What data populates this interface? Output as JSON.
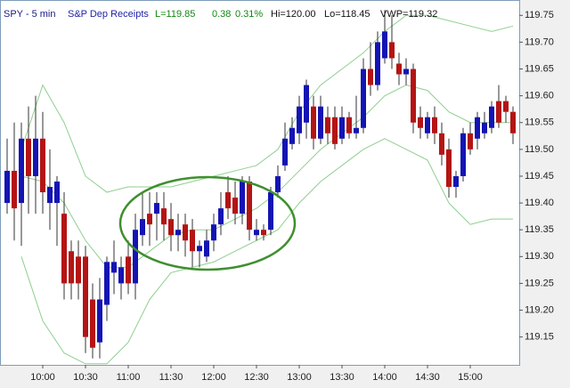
{
  "header": {
    "symbol": "SPY - 5 min",
    "name": "S&P Dep Receipts",
    "last": "L=119.85",
    "change": "0.38",
    "change_pct": "0.31%",
    "high": "Hi=120.00",
    "low": "Lo=118.45",
    "vwap": "VWP=119.32"
  },
  "chart_data": {
    "type": "candlestick",
    "categories": [
      null,
      null,
      null,
      null,
      null,
      "10:00",
      null,
      null,
      null,
      null,
      null,
      "10:30",
      null,
      null,
      null,
      null,
      null,
      "11:00",
      null,
      null,
      null,
      null,
      null,
      "11:30",
      null,
      null,
      null,
      null,
      null,
      "12:00",
      null,
      null,
      null,
      null,
      null,
      "12:30",
      null,
      null,
      null,
      null,
      null,
      "13:00",
      null,
      null,
      null,
      null,
      null,
      "13:30",
      null,
      null,
      null,
      null,
      null,
      "14:00",
      null,
      null,
      null,
      null,
      null,
      "14:30",
      null,
      null,
      null,
      null,
      null,
      "15:00",
      null,
      null,
      null,
      null,
      null,
      null
    ],
    "open": [
      119.4,
      119.46,
      119.4,
      119.52,
      119.45,
      119.52,
      119.4,
      119.4,
      119.38,
      119.31,
      119.3,
      119.3,
      119.22,
      119.14,
      119.21,
      119.27,
      119.25,
      119.3,
      119.25,
      119.34,
      119.38,
      119.38,
      119.39,
      119.37,
      119.34,
      119.36,
      119.35,
      119.31,
      119.3,
      119.33,
      119.36,
      119.42,
      119.41,
      119.38,
      119.44,
      119.34,
      119.35,
      119.35,
      119.42,
      119.47,
      119.51,
      119.53,
      119.55,
      119.58,
      119.52,
      119.56,
      119.56,
      119.52,
      119.56,
      119.53,
      119.54,
      119.65,
      119.62,
      119.67,
      119.7,
      119.66,
      119.64,
      119.65,
      119.56,
      119.53,
      119.56,
      119.53,
      119.5,
      119.43,
      119.45,
      119.53,
      119.52,
      119.53,
      119.54,
      119.59,
      119.59,
      119.57
    ],
    "high": [
      119.52,
      119.55,
      119.55,
      119.58,
      119.6,
      119.57,
      119.5,
      119.45,
      119.42,
      119.33,
      119.33,
      119.32,
      119.25,
      119.26,
      119.3,
      119.33,
      119.3,
      119.33,
      119.38,
      119.42,
      119.42,
      119.42,
      119.42,
      119.4,
      119.38,
      119.38,
      119.37,
      119.33,
      119.35,
      119.38,
      119.42,
      119.45,
      119.44,
      119.45,
      119.45,
      119.37,
      119.36,
      119.43,
      119.47,
      119.55,
      119.56,
      119.6,
      119.63,
      119.6,
      119.6,
      119.58,
      119.58,
      119.58,
      119.57,
      119.6,
      119.67,
      119.7,
      119.72,
      119.76,
      119.75,
      119.68,
      119.67,
      119.66,
      119.58,
      119.57,
      119.58,
      119.55,
      119.52,
      119.46,
      119.54,
      119.55,
      119.57,
      119.57,
      119.59,
      119.62,
      119.6,
      119.58
    ],
    "low": [
      119.38,
      119.33,
      119.32,
      119.38,
      119.38,
      119.38,
      119.35,
      119.32,
      119.22,
      119.22,
      119.22,
      119.12,
      119.11,
      119.11,
      119.18,
      119.23,
      119.22,
      119.23,
      119.22,
      119.32,
      119.32,
      119.33,
      119.33,
      119.31,
      119.31,
      119.3,
      119.28,
      119.28,
      119.29,
      119.31,
      119.34,
      119.37,
      119.36,
      119.36,
      119.33,
      119.33,
      119.33,
      119.34,
      119.41,
      119.46,
      119.5,
      119.51,
      119.52,
      119.5,
      119.51,
      119.51,
      119.5,
      119.51,
      119.52,
      119.52,
      119.53,
      119.6,
      119.61,
      119.66,
      119.65,
      119.62,
      119.62,
      119.53,
      119.52,
      119.52,
      119.51,
      119.47,
      119.41,
      119.41,
      119.44,
      119.49,
      119.5,
      119.52,
      119.53,
      119.54,
      119.55,
      119.51
    ],
    "close": [
      119.46,
      119.39,
      119.52,
      119.45,
      119.52,
      119.42,
      119.43,
      119.44,
      119.25,
      119.25,
      119.25,
      119.15,
      119.13,
      119.22,
      119.29,
      119.29,
      119.28,
      119.25,
      119.35,
      119.37,
      119.36,
      119.4,
      119.36,
      119.34,
      119.35,
      119.33,
      119.31,
      119.32,
      119.33,
      119.36,
      119.39,
      119.39,
      119.38,
      119.44,
      119.35,
      119.35,
      119.34,
      119.42,
      119.45,
      119.52,
      119.54,
      119.58,
      119.62,
      119.52,
      119.58,
      119.53,
      119.51,
      119.56,
      119.53,
      119.54,
      119.65,
      119.62,
      119.7,
      119.72,
      119.67,
      119.64,
      119.65,
      119.55,
      119.54,
      119.56,
      119.53,
      119.49,
      119.43,
      119.45,
      119.53,
      119.5,
      119.56,
      119.55,
      119.58,
      119.55,
      119.57,
      119.53
    ],
    "up_color": "#1414b4",
    "down_color": "#b41414",
    "bands": [
      {
        "color": "#8fcf8f",
        "index": [
          2,
          5,
          8,
          11,
          14,
          17,
          20,
          23,
          26,
          29,
          32,
          35,
          38,
          41,
          44,
          47,
          50,
          53,
          56,
          59,
          62,
          65,
          68,
          71
        ],
        "values": [
          119.5,
          119.62,
          119.55,
          119.45,
          119.42,
          119.43,
          119.43,
          119.43,
          119.44,
          119.45,
          119.46,
          119.47,
          119.5,
          119.57,
          119.62,
          119.65,
          119.68,
          119.72,
          119.75,
          119.75,
          119.74,
          119.73,
          119.72,
          119.73
        ]
      },
      {
        "color": "#8fcf8f",
        "index": [
          2,
          5,
          8,
          11,
          14,
          17,
          20,
          23,
          26,
          29,
          32,
          35,
          38,
          41,
          44,
          47,
          50,
          53,
          56,
          59,
          62,
          65,
          68,
          71
        ],
        "values": [
          119.45,
          119.44,
          119.4,
          119.33,
          119.28,
          119.28,
          119.31,
          119.34,
          119.35,
          119.35,
          119.37,
          119.39,
          119.42,
          119.46,
          119.5,
          119.53,
          119.56,
          119.6,
          119.62,
          119.61,
          119.57,
          119.55,
          119.55,
          119.55
        ]
      },
      {
        "color": "#8fcf8f",
        "index": [
          2,
          5,
          8,
          11,
          14,
          17,
          20,
          23,
          26,
          29,
          32,
          35,
          38,
          41,
          44,
          47,
          50,
          53,
          56,
          59,
          62,
          65,
          68,
          71
        ],
        "values": [
          119.3,
          119.18,
          119.12,
          119.1,
          119.1,
          119.14,
          119.22,
          119.27,
          119.28,
          119.29,
          119.31,
          119.33,
          119.35,
          119.4,
          119.44,
          119.47,
          119.5,
          119.52,
          119.5,
          119.48,
          119.4,
          119.36,
          119.37,
          119.37
        ]
      }
    ],
    "ylim": [
      119.098,
      119.777
    ],
    "yticks": [
      119.15,
      {
        "value": 119.2,
        "label": "119.20"
      },
      119.25,
      {
        "value": 119.3,
        "label": "119.30"
      },
      119.35,
      {
        "value": 119.4,
        "label": "119.40"
      },
      119.45,
      {
        "value": 119.5,
        "label": "119.50"
      },
      119.55,
      {
        "value": 119.6,
        "label": "119.60"
      },
      119.65,
      {
        "value": 119.7,
        "label": "119.70"
      },
      119.75
    ]
  }
}
